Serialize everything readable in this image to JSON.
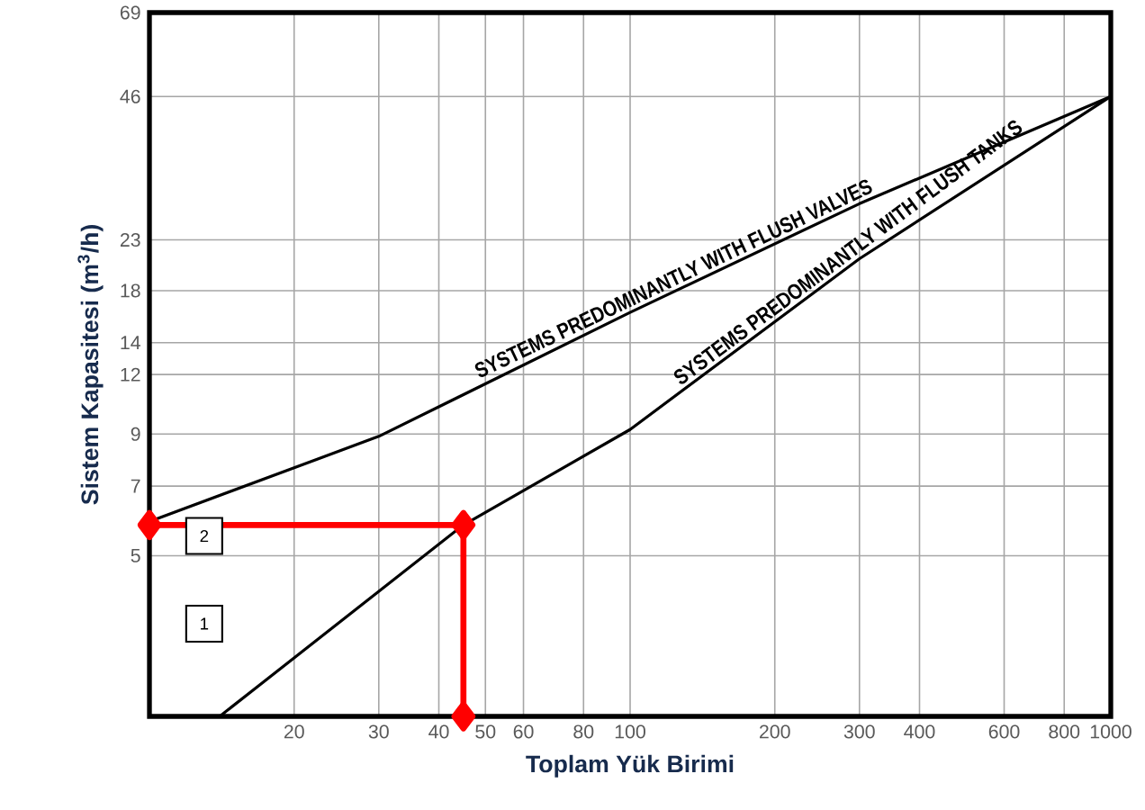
{
  "chart_data": {
    "type": "line",
    "xlabel": "Toplam Yük Birimi",
    "ylabel": "Sistem Kapasitesi (m$^{3}$/h)",
    "log": "xy",
    "grid": true,
    "xlim": [
      10,
      1000
    ],
    "ylim": [
      2.3,
      69
    ],
    "xticks": [
      20,
      30,
      40,
      50,
      60,
      80,
      100,
      200,
      300,
      400,
      600,
      800,
      1000
    ],
    "yticks": [
      5,
      7,
      9,
      12,
      14,
      18,
      23,
      46,
      69
    ],
    "series": [
      {
        "name": "SYSTEMS PREDOMINANTLY WITH FLUSH VALVES",
        "color": "#000000",
        "marker": "none",
        "x": [
          10,
          30,
          100,
          300,
          1000
        ],
        "values": [
          5.9,
          8.9,
          16.2,
          27.4,
          46
        ]
      },
      {
        "name": "SYSTEMS PREDOMINANTLY WITH FLUSH TANKS",
        "color": "#000000",
        "marker": "none",
        "x": [
          14,
          45,
          100,
          300,
          1000
        ],
        "values": [
          2.3,
          5.8,
          9.2,
          21,
          46
        ]
      },
      {
        "color": "#ff0000",
        "marker": "diamond",
        "x": [
          10,
          45,
          45
        ],
        "values": [
          5.8,
          5.8,
          2.3
        ]
      }
    ],
    "annotations": [
      {
        "text": "2",
        "x": 13,
        "y": 5.5
      },
      {
        "text": "1",
        "x": 13,
        "y": 3.6
      }
    ]
  }
}
